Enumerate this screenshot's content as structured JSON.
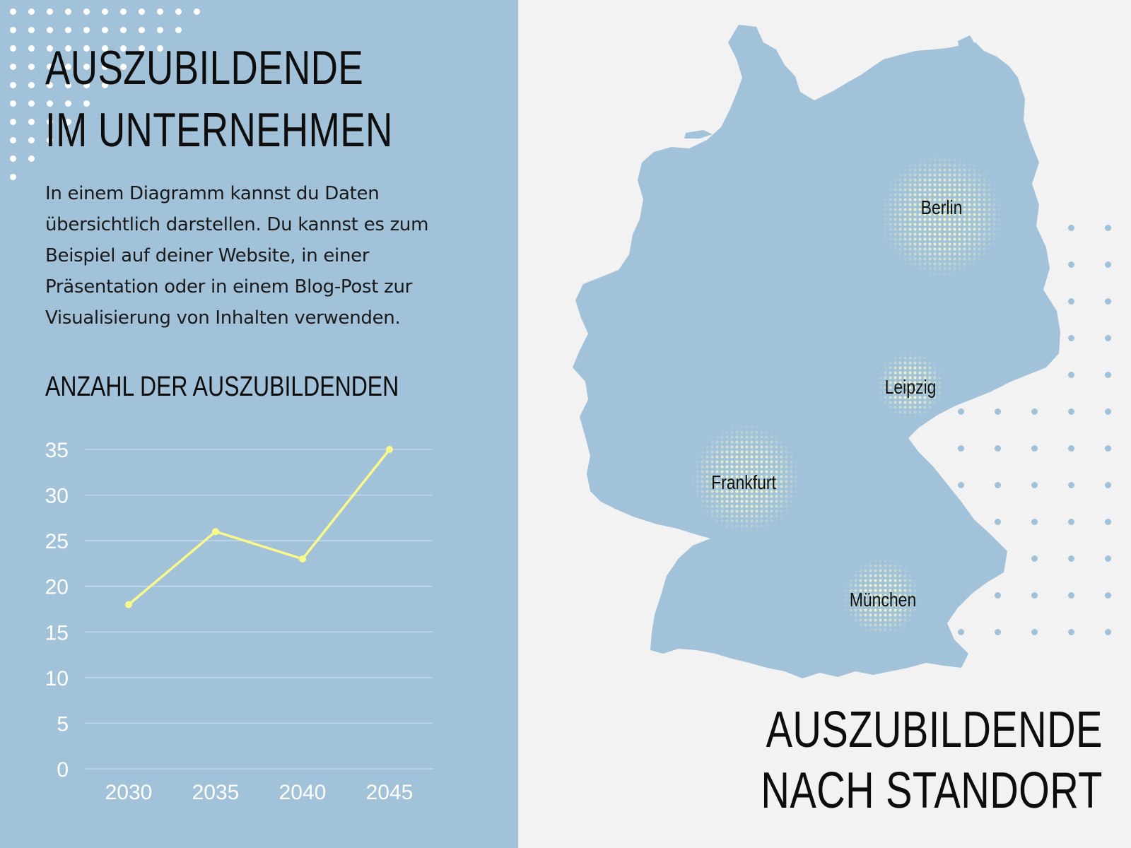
{
  "header": {
    "title_line1": "AUSZUBILDENDE",
    "title_line2": "IM UNTERNEHMEN"
  },
  "intro_text": "In einem Diagramm kannst du Daten übersichtlich darstellen. Du kannst es zum Beispiel auf deiner Website, in einer Präsentation oder in einem Blog-Post zur Visualisierung von Inhalten verwenden.",
  "chart_data": {
    "type": "line",
    "title": "ANZAHL DER AUSZUBILDENDEN",
    "xlabel": "",
    "ylabel": "",
    "categories": [
      "2030",
      "2035",
      "2040",
      "2045"
    ],
    "series": [
      {
        "values": [
          18,
          26,
          23,
          35
        ]
      }
    ],
    "ylim": [
      0,
      35
    ],
    "yticks": [
      0,
      5,
      10,
      15,
      20,
      25,
      30,
      35
    ],
    "grid": true,
    "line_color": "#f9f98a",
    "tick_color": "#ffffff"
  },
  "map": {
    "title_line1": "AUSZUBILDENDE",
    "title_line2": "NACH STANDORT",
    "cities": [
      {
        "name": "Berlin"
      },
      {
        "name": "Leipzig"
      },
      {
        "name": "Frankfurt"
      },
      {
        "name": "München"
      }
    ]
  },
  "colors": {
    "panel": "#a2c2da",
    "background": "#f2f2f2",
    "accent": "#f9f98a",
    "text": "#0d0d0d"
  }
}
